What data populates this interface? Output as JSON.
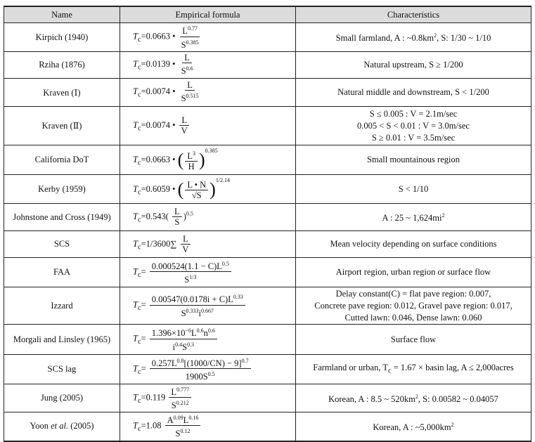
{
  "headers": [
    "Name",
    "Empirical formula",
    "Characteristics"
  ],
  "rows": [
    {
      "name": "Kirpich (1940)",
      "formula": {
        "pre": "=0.0663 •",
        "num": "L^{0.77}",
        "den": "S^{0.385}"
      },
      "chars": [
        "Small farmland, A : ~0.8km^{2}, S: 1/30 ~ 1/10"
      ]
    },
    {
      "name": "Rziha (1876)",
      "formula": {
        "pre": "=0.0139 •",
        "num": "L",
        "den": "S^{0.6}"
      },
      "chars": [
        "Natural upstream, S ≥ 1/200"
      ]
    },
    {
      "name": "Kraven (Ⅰ)",
      "formula": {
        "pre": "=0.0074 •",
        "num": "L",
        "den": "S^{0.515}"
      },
      "chars": [
        "Natural middle and downstream, S < 1/200"
      ]
    },
    {
      "name": "Kraven (Ⅱ)",
      "formula": {
        "pre": "=0.0074 •",
        "num": "L",
        "den": "V"
      },
      "chars": [
        "S ≤ 0.005 : V = 2.1m/sec",
        "0.005 < S < 0.01 : V = 3.0m/sec",
        "S ≥ 0.01 : V = 3.5m/sec"
      ]
    },
    {
      "name": "California DoT",
      "formula": {
        "pre": "=0.0663 •",
        "paren": true,
        "num": "L^{3}",
        "den": "H",
        "outer_sup": "0.385"
      },
      "chars": [
        "Small mountainous region"
      ]
    },
    {
      "name": "Kerby (1959)",
      "formula": {
        "pre": "=0.6059 •",
        "paren": true,
        "num": "L • N",
        "den": "√S",
        "outer_sup": "1/2.14"
      },
      "chars": [
        "S < 1/10"
      ]
    },
    {
      "name": "Johnstone and Cross (1949)",
      "formula": {
        "pre": "=0.543(",
        "num": "L",
        "den": "S",
        "post": ")^{0.5}"
      },
      "chars": [
        "A : 25 ~ 1,624mi^{2}"
      ]
    },
    {
      "name": "SCS",
      "formula": {
        "pre": "=1/3600∑",
        "num": "L",
        "den": "V"
      },
      "chars": [
        "Mean velocity depending on surface conditions"
      ]
    },
    {
      "name": "FAA",
      "formula": {
        "pre": "=",
        "num": "0.000524(1.1 − C)L^{0.5}",
        "den": "S^{1/3}"
      },
      "chars": [
        "Airport region, urban region or surface flow"
      ]
    },
    {
      "name": "Izzard",
      "formula": {
        "pre": "=",
        "num": "0.00547(0.0178i + C)L^{0.33}",
        "den": "S^{0.333}i^{0.667}"
      },
      "chars": [
        "Delay constant(C) = flat pave region: 0.007,",
        "Concrete pave region: 0.012, Gravel pave region: 0.017,",
        "Cutted lawn: 0.046, Dense lawn: 0.060"
      ]
    },
    {
      "name": "Morgali and Linsley (1965)",
      "formula": {
        "pre": "=",
        "num": "1.396×10^{−6}L^{0.6}n^{0.6}",
        "den": "i^{0.4}S^{0.3}"
      },
      "chars": [
        "Surface flow"
      ]
    },
    {
      "name": "SCS lag",
      "formula": {
        "pre": "=",
        "num": "0.257L^{0.8}[(1000/CN) − 9]^{0.7}",
        "den": "1900S^{0.5}"
      },
      "chars": [
        "Farmland or urban, T_c = 1.67 × basin lag, A ≤ 2,000acres"
      ]
    },
    {
      "name": "Jung (2005)",
      "formula": {
        "pre": "=0.119",
        "num": "L^{0.777}",
        "den": "S^{0.212}"
      },
      "chars": [
        "Korean, A : 8.5 ~ 520km^{2}, S: 0.00582 ~ 0.04057"
      ]
    },
    {
      "name": "Yoon *et al.* (2005)",
      "formula": {
        "pre": "=1.08",
        "num": "A^{0.09}L^{0.16}",
        "den": "S^{0.12}"
      },
      "chars": [
        "Korean, A : ~5,000km^{2}"
      ]
    }
  ],
  "row_heights": [
    41,
    38,
    40,
    55,
    42,
    41,
    39,
    38,
    42,
    53,
    43,
    42,
    40,
    41
  ]
}
